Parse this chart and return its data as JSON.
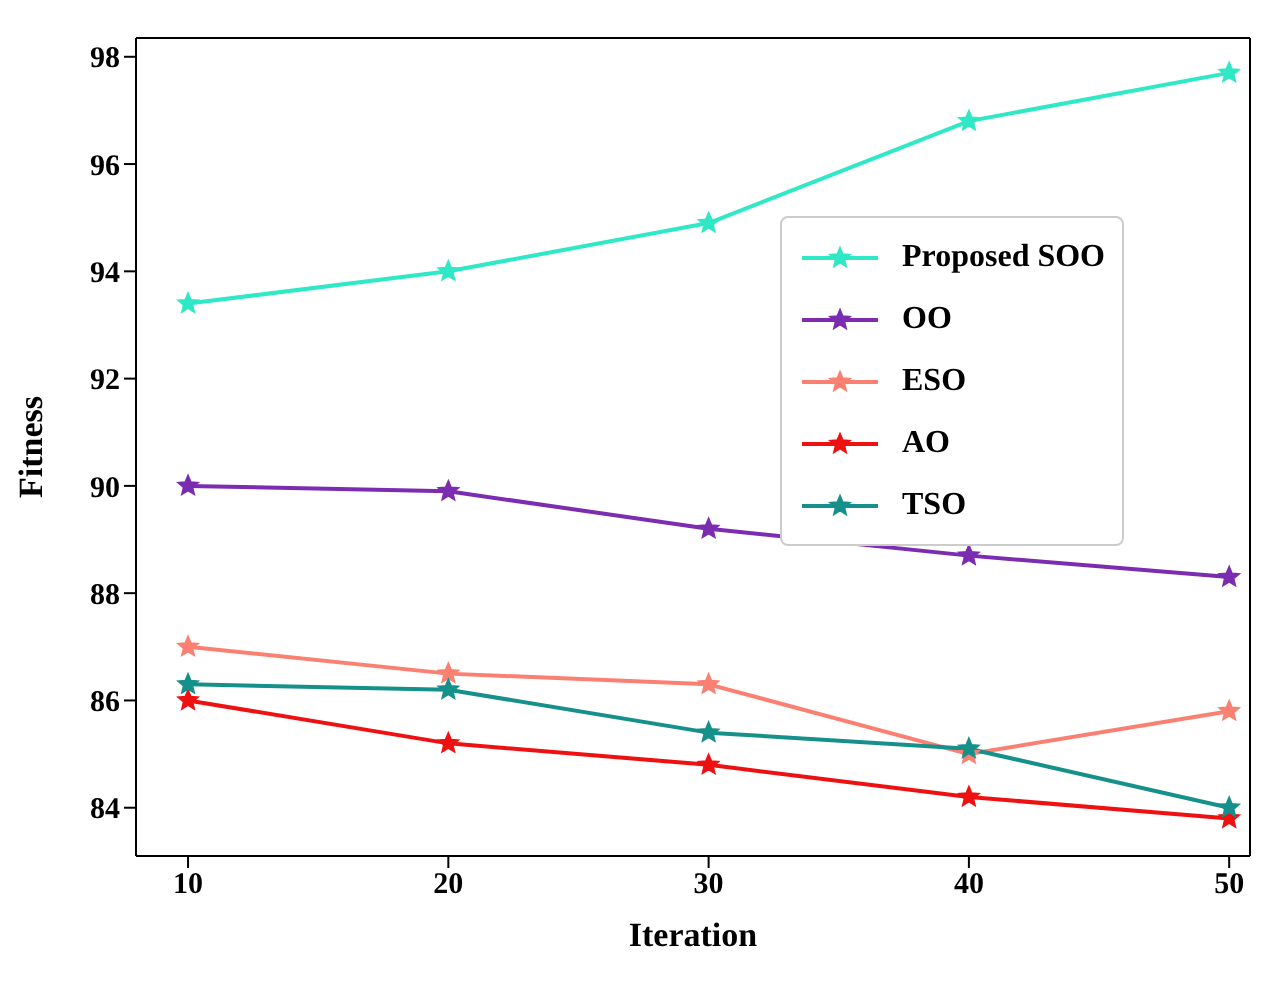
{
  "chart_data": {
    "type": "line",
    "xlabel": "Iteration",
    "ylabel": "Fitness",
    "x": [
      10,
      20,
      30,
      40,
      50
    ],
    "xlim": [
      8,
      50.8
    ],
    "xticks": [
      10,
      20,
      30,
      40,
      50
    ],
    "ylim": [
      83.1,
      98.35
    ],
    "yticks": [
      84,
      86,
      88,
      90,
      92,
      94,
      96,
      98
    ],
    "marker": "star",
    "legend": "center right",
    "grid": false,
    "series": [
      {
        "name": "Proposed SOO",
        "color": "#2ee8c6",
        "values": [
          93.4,
          94.0,
          94.9,
          96.8,
          97.7
        ]
      },
      {
        "name": "OO",
        "color": "#7b2cb0",
        "values": [
          90.0,
          89.9,
          89.2,
          88.7,
          88.3
        ]
      },
      {
        "name": "ESO",
        "color": "#fa8072",
        "values": [
          87.0,
          86.5,
          86.3,
          85.0,
          85.8
        ]
      },
      {
        "name": "AO",
        "color": "#ee1111",
        "values": [
          86.0,
          85.2,
          84.8,
          84.2,
          83.8
        ]
      },
      {
        "name": "TSO",
        "color": "#15908a",
        "values": [
          86.3,
          86.2,
          85.4,
          85.1,
          84.0
        ]
      }
    ]
  }
}
